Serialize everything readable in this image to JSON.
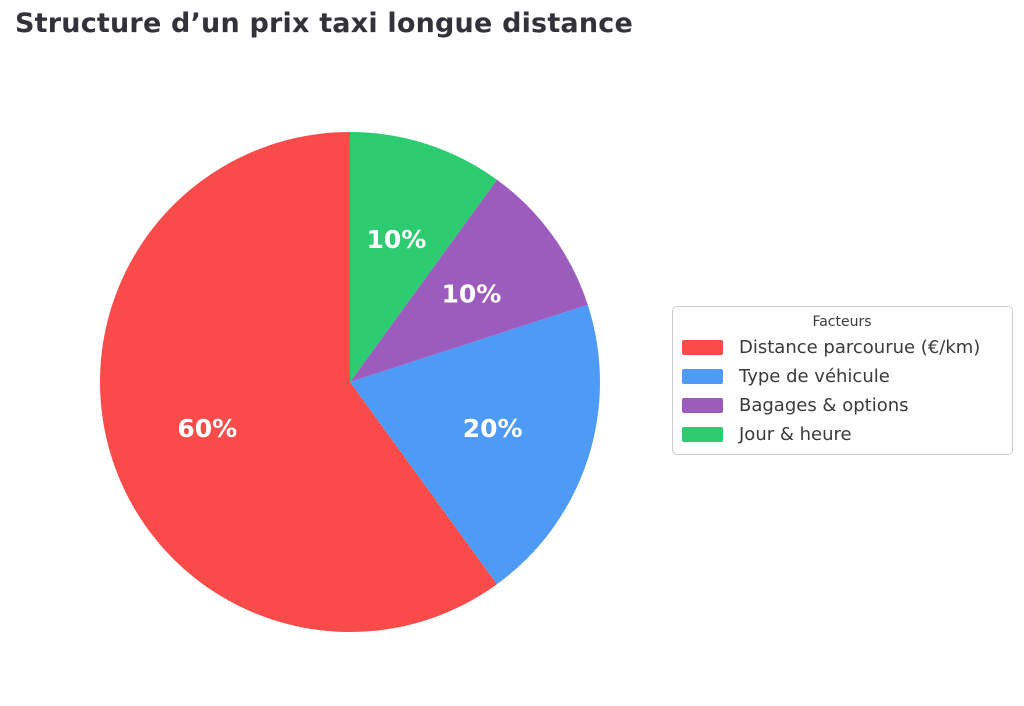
{
  "figure": {
    "background": "#ffffff"
  },
  "chart_data": {
    "type": "pie",
    "title": "Structure d’un prix taxi longue distance",
    "labels": [
      "Distance parcourue (€/km)",
      "Type de véhicule",
      "Bagages & options",
      "Jour & heure"
    ],
    "values": [
      60,
      20,
      10,
      10
    ],
    "pct_labels": [
      "60%",
      "20%",
      "10%",
      "10%"
    ],
    "colors": [
      "#fa4b4b",
      "#4e9bf7",
      "#9b5cbe",
      "#2ecc71"
    ],
    "start_angle_deg": 90,
    "direction": "counterclockwise",
    "pct_label_distance": 0.6,
    "pct_label_color": "#ffffff",
    "legend": {
      "title": "Facteurs",
      "position": "center right"
    }
  }
}
